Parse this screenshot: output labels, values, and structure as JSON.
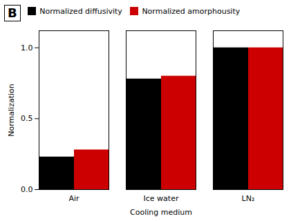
{
  "chart_data": {
    "type": "bar",
    "categories": [
      "Air",
      "Ice water",
      "LN₂"
    ],
    "series": [
      {
        "name": "Normalized diffusivity",
        "color": "#000000",
        "values": [
          0.23,
          0.78,
          1.0
        ]
      },
      {
        "name": "Normalized amorphousity",
        "color": "#cc0000",
        "values": [
          0.28,
          0.8,
          1.0
        ]
      }
    ],
    "xlabel": "Cooling medium",
    "ylabel": "Normalization",
    "ylim": [
      0.0,
      1.12
    ],
    "yticks": [
      {
        "value": 0,
        "label": "0.0"
      },
      0.5,
      {
        "value": 1,
        "label": "1.0"
      }
    ],
    "annotations": [
      "B"
    ],
    "legend": "top",
    "grid": false
  }
}
